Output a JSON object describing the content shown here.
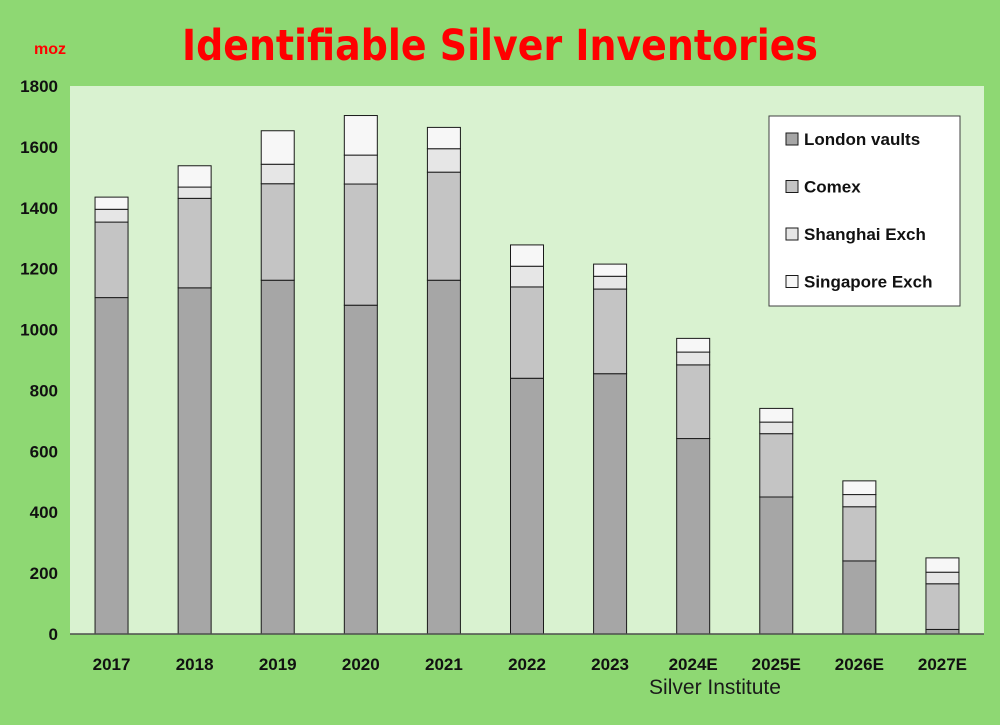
{
  "chart_data": {
    "type": "bar",
    "stacked": true,
    "title": "Identifiable Silver Inventories",
    "unit_label": "moz",
    "source": "Silver Institute",
    "categories": [
      "2017",
      "2018",
      "2019",
      "2020",
      "2021",
      "2022",
      "2023",
      "2024E",
      "2025E",
      "2026E",
      "2027E"
    ],
    "series": [
      {
        "name": "London vaults",
        "color": "#a6a6a6",
        "values": [
          1105,
          1137,
          1162,
          1080,
          1162,
          840,
          855,
          642,
          450,
          240,
          15
        ]
      },
      {
        "name": "Comex",
        "color": "#c4c4c4",
        "values": [
          248,
          294,
          317,
          398,
          355,
          300,
          278,
          242,
          208,
          178,
          150
        ]
      },
      {
        "name": "Shanghai Exch",
        "color": "#e6e6e6",
        "values": [
          42,
          37,
          64,
          95,
          77,
          68,
          42,
          42,
          38,
          40,
          38
        ]
      },
      {
        "name": "Singapore Exch",
        "color": "#f7f7f7",
        "values": [
          40,
          70,
          110,
          130,
          70,
          70,
          40,
          45,
          45,
          45,
          47
        ]
      }
    ],
    "ylim": [
      0,
      1800
    ],
    "yticks": [
      0,
      200,
      400,
      600,
      800,
      1000,
      1200,
      1400,
      1600,
      1800
    ],
    "grid": false,
    "legend_position": "top-right",
    "colors": {
      "background": "#8ed873",
      "plot_area": "#d9f2d0",
      "title": "#ff0000",
      "unit": "#ff0000"
    }
  }
}
